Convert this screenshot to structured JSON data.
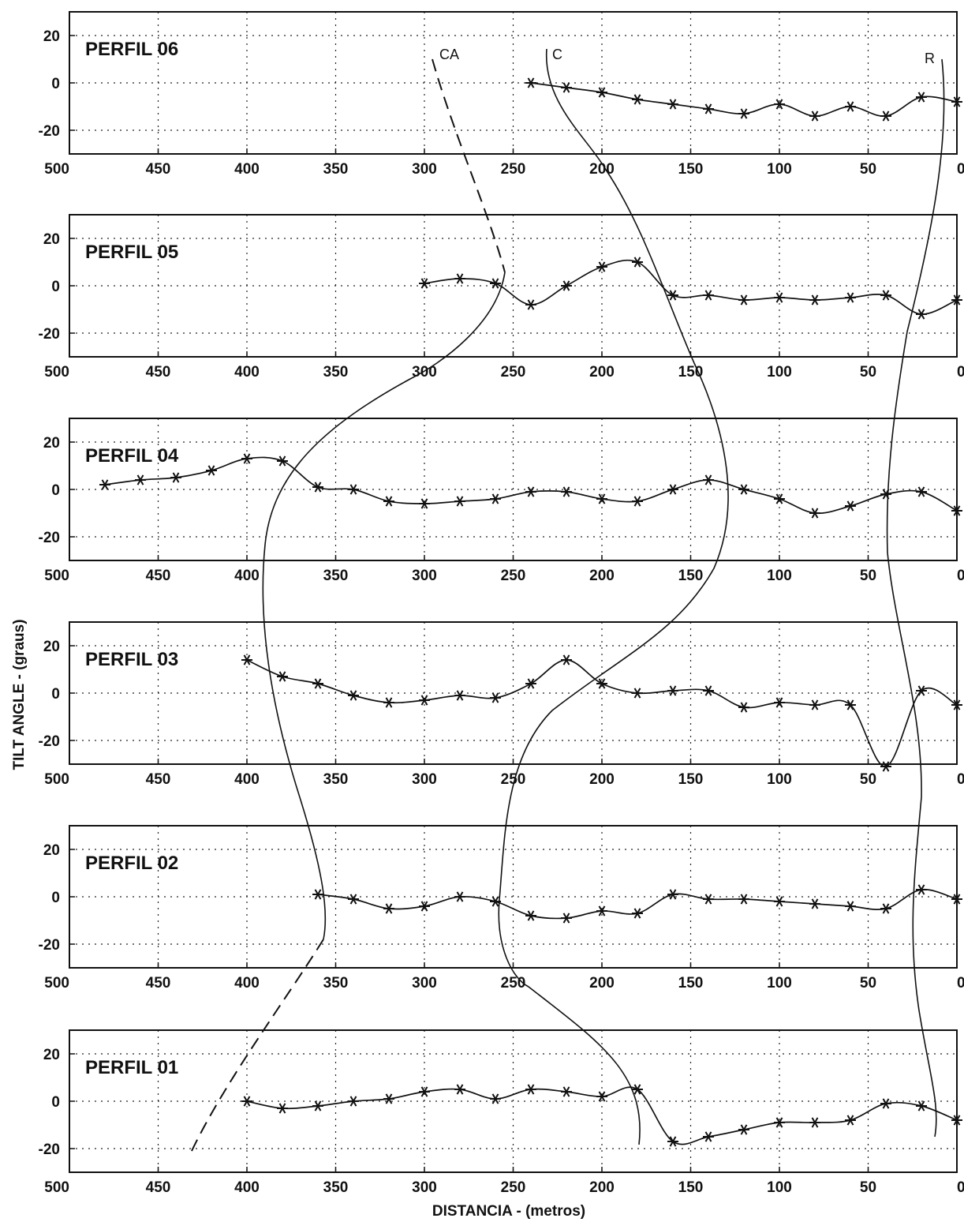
{
  "ylabel": "TILT ANGLE - (graus)",
  "xlabel": "DISTANCIA - (metros)",
  "xticks": [
    500,
    450,
    400,
    350,
    300,
    250,
    200,
    150,
    100,
    50,
    0
  ],
  "yticks": [
    20,
    0,
    -20
  ],
  "correlation_lines": [
    {
      "label": "CA",
      "style": "dashed-then-solid"
    },
    {
      "label": "C",
      "style": "solid"
    },
    {
      "label": "R",
      "style": "solid"
    }
  ],
  "chart_data": [
    {
      "type": "line",
      "title": "PERFIL 06",
      "xlim": [
        500,
        0
      ],
      "ylim": [
        -30,
        30
      ],
      "grid": true,
      "marker": "asterisk",
      "x": [
        240,
        220,
        200,
        180,
        160,
        140,
        120,
        100,
        80,
        60,
        40,
        20,
        0
      ],
      "y": [
        0,
        -2,
        -4,
        -7,
        -9,
        -11,
        -13,
        -9,
        -14,
        -10,
        -14,
        -6,
        -8
      ]
    },
    {
      "type": "line",
      "title": "PERFIL 05",
      "xlim": [
        500,
        0
      ],
      "ylim": [
        -30,
        30
      ],
      "grid": true,
      "marker": "asterisk",
      "x": [
        300,
        280,
        260,
        240,
        220,
        200,
        180,
        160,
        140,
        120,
        100,
        80,
        60,
        40,
        20,
        0
      ],
      "y": [
        1,
        3,
        1,
        -8,
        0,
        8,
        10,
        -4,
        -4,
        -6,
        -5,
        -6,
        -5,
        -4,
        -12,
        -6
      ]
    },
    {
      "type": "line",
      "title": "PERFIL 04",
      "xlim": [
        500,
        0
      ],
      "ylim": [
        -30,
        30
      ],
      "grid": true,
      "marker": "asterisk",
      "x": [
        480,
        460,
        440,
        420,
        400,
        380,
        360,
        340,
        320,
        300,
        280,
        260,
        240,
        220,
        200,
        180,
        160,
        140,
        120,
        100,
        80,
        60,
        40,
        20,
        0
      ],
      "y": [
        2,
        4,
        5,
        8,
        13,
        12,
        1,
        0,
        -5,
        -6,
        -5,
        -4,
        -1,
        -1,
        -4,
        -5,
        0,
        4,
        0,
        -4,
        -10,
        -7,
        -2,
        -1,
        -9
      ]
    },
    {
      "type": "line",
      "title": "PERFIL 03",
      "xlim": [
        500,
        0
      ],
      "ylim": [
        -30,
        30
      ],
      "grid": true,
      "marker": "asterisk",
      "x": [
        400,
        380,
        360,
        340,
        320,
        300,
        280,
        260,
        240,
        220,
        200,
        180,
        160,
        140,
        120,
        100,
        80,
        60,
        40,
        20,
        0
      ],
      "y": [
        14,
        7,
        4,
        -1,
        -4,
        -3,
        -1,
        -2,
        4,
        14,
        4,
        0,
        1,
        1,
        -6,
        -4,
        -5,
        -5,
        -31,
        1,
        -5
      ]
    },
    {
      "type": "line",
      "title": "PERFIL 02",
      "xlim": [
        500,
        0
      ],
      "ylim": [
        -30,
        30
      ],
      "grid": true,
      "marker": "asterisk",
      "x": [
        360,
        340,
        320,
        300,
        280,
        260,
        240,
        220,
        200,
        180,
        160,
        140,
        120,
        100,
        80,
        60,
        40,
        20,
        0
      ],
      "y": [
        1,
        -1,
        -5,
        -4,
        0,
        -2,
        -8,
        -9,
        -6,
        -7,
        1,
        -1,
        -1,
        -2,
        -3,
        -4,
        -5,
        3,
        -1
      ]
    },
    {
      "type": "line",
      "title": "PERFIL 01",
      "xlim": [
        500,
        0
      ],
      "ylim": [
        -30,
        30
      ],
      "grid": true,
      "marker": "asterisk",
      "x": [
        400,
        380,
        360,
        340,
        320,
        300,
        280,
        260,
        240,
        220,
        200,
        180,
        160,
        140,
        120,
        100,
        80,
        60,
        40,
        20,
        0
      ],
      "y": [
        0,
        -3,
        -2,
        0,
        1,
        4,
        5,
        1,
        5,
        4,
        2,
        5,
        -17,
        -15,
        -12,
        -9,
        -9,
        -8,
        -1,
        -2,
        -8
      ]
    }
  ]
}
